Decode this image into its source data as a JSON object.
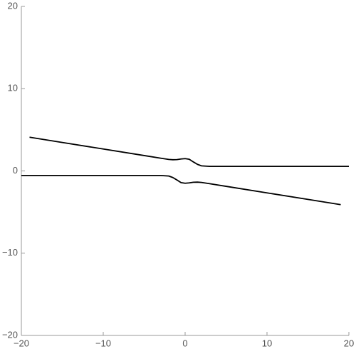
{
  "chart_data": {
    "type": "line",
    "x": [
      -20,
      -19,
      -15,
      -10,
      -5,
      -3,
      -2,
      -1.5,
      -1,
      -0.5,
      0,
      0.5,
      1,
      1.5,
      2,
      3,
      5,
      10,
      15,
      19,
      20
    ],
    "series": [
      {
        "color": "#000000",
        "values": [
          null,
          4.1,
          3.46,
          2.67,
          1.87,
          1.55,
          1.4,
          1.36,
          1.38,
          1.45,
          1.5,
          1.42,
          1.1,
          0.8,
          0.62,
          0.55,
          0.55,
          0.55,
          0.55,
          0.55,
          0.55
        ]
      },
      {
        "color": "#000000",
        "values": [
          -0.55,
          -0.55,
          -0.55,
          -0.55,
          -0.55,
          -0.55,
          -0.62,
          -0.8,
          -1.1,
          -1.42,
          -1.5,
          -1.45,
          -1.38,
          -1.36,
          -1.4,
          -1.55,
          -1.87,
          -2.67,
          -3.46,
          -4.1,
          null
        ]
      }
    ],
    "xlim": [
      -20,
      20
    ],
    "ylim": [
      -20,
      20
    ],
    "xticks": [
      {
        "value": -20,
        "label": "−20"
      },
      {
        "value": -10,
        "label": "−10"
      },
      0,
      10,
      20
    ],
    "yticks": [
      {
        "value": -20,
        "label": "−20"
      },
      {
        "value": -10,
        "label": "−10"
      },
      0,
      10,
      20
    ]
  }
}
